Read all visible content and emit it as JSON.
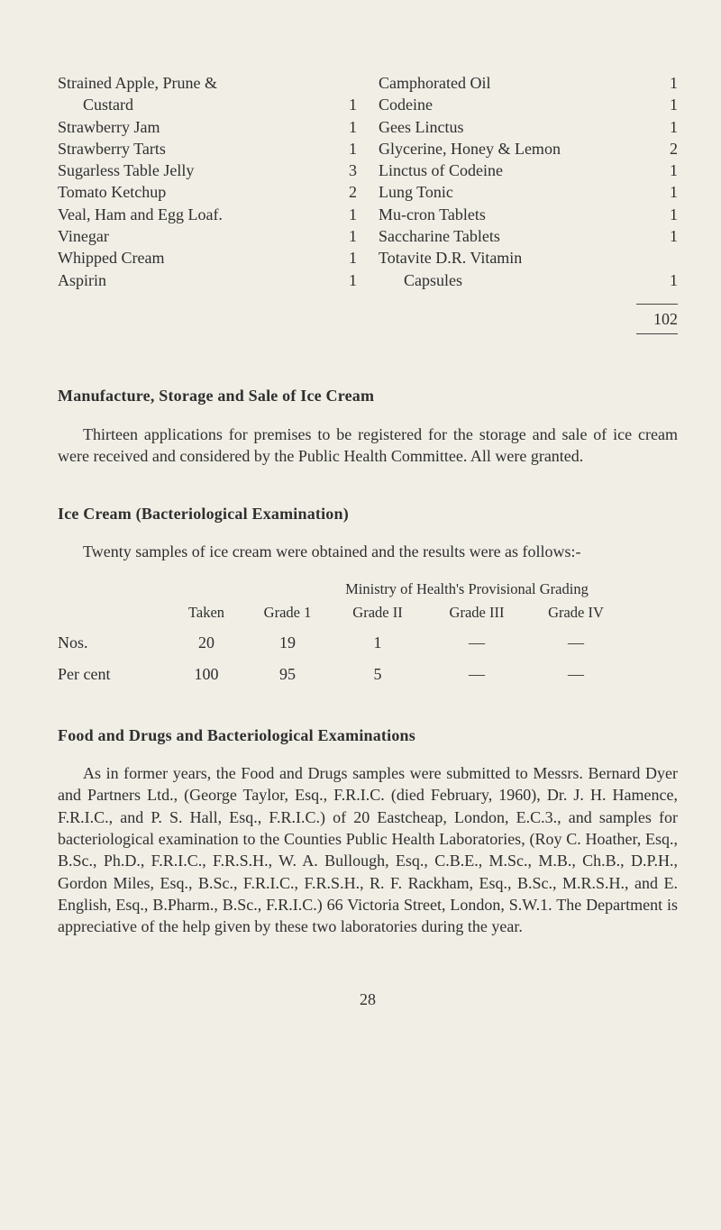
{
  "left_items": [
    {
      "label": "Strained Apple, Prune &",
      "val": ""
    },
    {
      "label": "Custard",
      "val": "1",
      "indent": true
    },
    {
      "label": "Strawberry Jam",
      "val": "1"
    },
    {
      "label": "Strawberry Tarts",
      "val": "1"
    },
    {
      "label": "Sugarless Table Jelly",
      "val": "3"
    },
    {
      "label": "Tomato Ketchup",
      "val": "2"
    },
    {
      "label": "Veal, Ham and Egg Loaf.",
      "val": "1"
    },
    {
      "label": "Vinegar",
      "val": "1"
    },
    {
      "label": "Whipped Cream",
      "val": "1"
    },
    {
      "label": "Aspirin",
      "val": "1"
    }
  ],
  "right_items": [
    {
      "label": "Camphorated Oil",
      "val": "1"
    },
    {
      "label": "Codeine",
      "val": "1"
    },
    {
      "label": "Gees Linctus",
      "val": "1"
    },
    {
      "label": "Glycerine, Honey & Lemon",
      "val": "2"
    },
    {
      "label": "Linctus of Codeine",
      "val": "1"
    },
    {
      "label": "Lung Tonic",
      "val": "1"
    },
    {
      "label": "Mu-cron Tablets",
      "val": "1"
    },
    {
      "label": "Saccharine Tablets",
      "val": "1"
    },
    {
      "label": "Totavite D.R. Vitamin",
      "val": ""
    },
    {
      "label": "Capsules",
      "val": "1",
      "indent": true
    }
  ],
  "total": "102",
  "section1": {
    "heading": "Manufacture, Storage and Sale of Ice Cream",
    "para": "Thirteen applications for premises to be registered for the storage and sale of ice cream were received and considered by the Public Health Committee. All were granted."
  },
  "section2": {
    "heading": "Ice Cream (Bacteriological Examination)",
    "para": "Twenty samples of ice cream were obtained and the results were as follows:-"
  },
  "grade": {
    "super_header": "Ministry of Health's Provisional Grading",
    "col_labels": {
      "taken": "Taken",
      "g1": "Grade 1",
      "g2": "Grade II",
      "g3": "Grade III",
      "g4": "Grade IV"
    },
    "rows": [
      {
        "label": "Nos.",
        "taken": "20",
        "g1": "19",
        "g2": "1",
        "g3": "—",
        "g4": "—"
      },
      {
        "label": "Per cent",
        "taken": "100",
        "g1": "95",
        "g2": "5",
        "g3": "—",
        "g4": "—"
      }
    ]
  },
  "section3": {
    "heading": "Food and Drugs and Bacteriological Examinations",
    "para": "As in former years, the Food and Drugs samples were submitted to Messrs. Bernard Dyer and Partners Ltd., (George Taylor, Esq., F.R.I.C. (died February, 1960), Dr. J. H. Hamence, F.R.I.C., and P. S. Hall, Esq., F.R.I.C.) of 20 Eastcheap, London, E.C.3., and samples for bacteriological examination to the Counties Public Health Laboratories, (Roy C. Hoather, Esq., B.Sc., Ph.D., F.R.I.C., F.R.S.H., W. A. Bullough, Esq., C.B.E., M.Sc., M.B., Ch.B., D.P.H., Gordon Miles, Esq., B.Sc., F.R.I.C., F.R.S.H., R. F. Rackham, Esq., B.Sc., M.R.S.H., and E. English, Esq., B.Pharm., B.Sc., F.R.I.C.) 66 Victoria Street, London, S.W.1. The Department is appreciative of the help given by these two laboratories during the year."
  },
  "page_number": "28"
}
